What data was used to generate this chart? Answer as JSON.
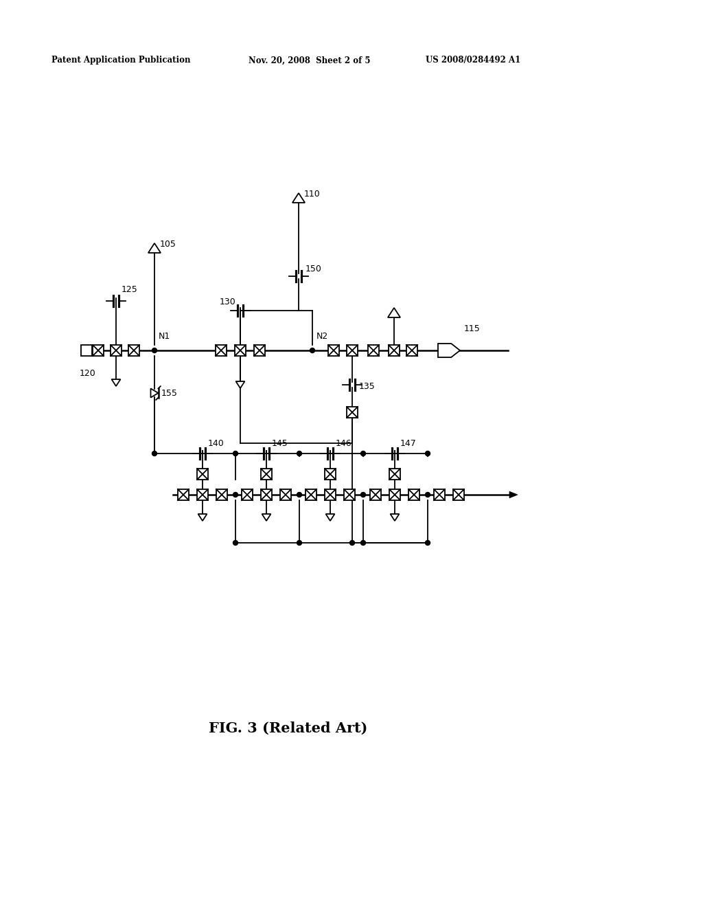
{
  "bg_color": "#ffffff",
  "title": "FIG. 3 (Related Art)",
  "header_left": "Patent Application Publication",
  "header_mid": "Nov. 20, 2008  Sheet 2 of 5",
  "header_right": "US 2008/0284492 A1",
  "fig_width": 10.24,
  "fig_height": 13.2,
  "lw": 1.3,
  "lw2": 1.8
}
